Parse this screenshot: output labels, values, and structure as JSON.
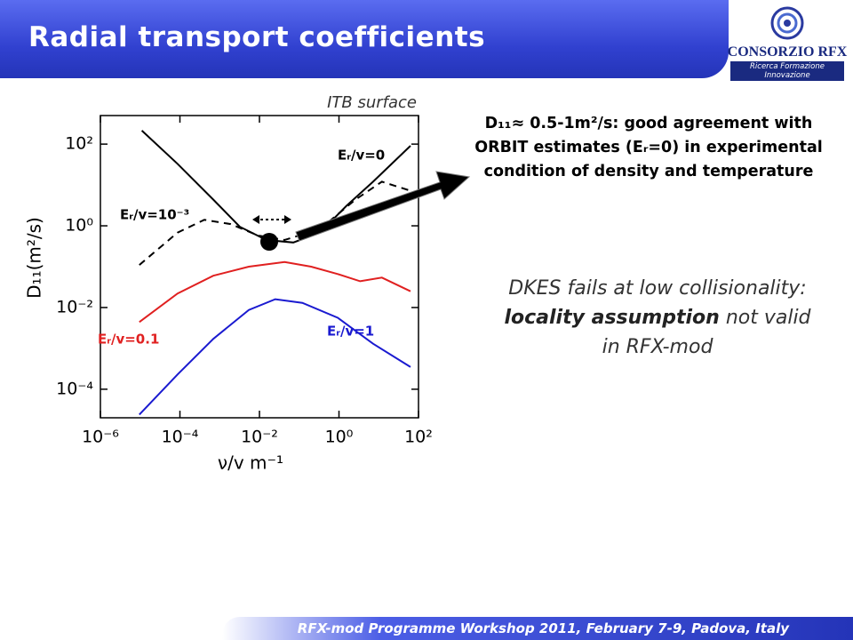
{
  "header": {
    "title": "Radial transport coefficients",
    "logo_name": "CONSORZIO RFX",
    "logo_tagline": "Ricerca Formazione Innovazione"
  },
  "callout": "D₁₁≈ 0.5-1m²/s: good agreement with ORBIT estimates (Eᵣ=0) in experimental condition of density and temperature",
  "note": {
    "parts": [
      "DKES fails at low collisionality:",
      "locality assumption",
      "not valid in RFX-mod"
    ]
  },
  "footer": "RFX-mod Programme Workshop 2011, February 7-9, Padova, Italy",
  "chart_data": {
    "type": "line",
    "annotation": "ITB surface",
    "x_label": "ν/v m⁻¹",
    "y_label": "D₁₁(m²/s)",
    "x_scale": "log",
    "y_scale": "log",
    "xlim": [
      1e-06,
      100
    ],
    "ylim": [
      2e-05,
      500
    ],
    "xticks": [
      {
        "value": 1e-06,
        "label": "10⁻⁶"
      },
      {
        "value": 0.0001,
        "label": "10⁻⁴"
      },
      {
        "value": 0.01,
        "label": "10⁻²"
      },
      {
        "value": 1,
        "label": "10⁰"
      },
      {
        "value": 100,
        "label": "10²"
      }
    ],
    "yticks": [
      {
        "value": 0.0001,
        "label": "10⁻⁴"
      },
      {
        "value": 0.01,
        "label": "10⁻²"
      },
      {
        "value": 1,
        "label": "10⁰"
      },
      {
        "value": 100,
        "label": "10²"
      }
    ],
    "series": [
      {
        "name": "Eᵣ/v=0",
        "color": "#000000",
        "dash": false,
        "x": [
          1.1e-05,
          8.7e-05,
          0.00069,
          0.0032,
          0.015,
          0.071,
          0.33,
          1.55,
          7.2,
          63
        ],
        "values": [
          214,
          33,
          4.4,
          0.95,
          0.45,
          0.39,
          0.68,
          3.1,
          12,
          91
        ]
      },
      {
        "name": "Eᵣ/v=10⁻³",
        "color": "#000000",
        "dash": true,
        "x": [
          9.5e-06,
          8.7e-05,
          0.00041,
          0.0019,
          0.0091,
          0.043,
          0.33,
          2.6,
          12,
          63
        ],
        "values": [
          0.11,
          0.68,
          1.4,
          1.1,
          0.58,
          0.45,
          0.83,
          4.4,
          12,
          7.2
        ]
      },
      {
        "name": "Eᵣ/v=0.1",
        "color": "#e02020",
        "dash": false,
        "x": [
          9.5e-06,
          8.7e-05,
          0.00069,
          0.0054,
          0.043,
          0.2,
          0.93,
          3.4,
          12,
          63
        ],
        "values": [
          0.0044,
          0.022,
          0.06,
          0.1,
          0.13,
          0.1,
          0.066,
          0.044,
          0.054,
          0.025
        ]
      },
      {
        "name": "Eᵣ/v=1",
        "color": "#1a1ad0",
        "dash": false,
        "x": [
          9.5e-06,
          8.7e-05,
          0.00069,
          0.0054,
          0.025,
          0.12,
          0.93,
          7.2,
          63
        ],
        "values": [
          2.4e-05,
          0.00023,
          0.0017,
          0.0087,
          0.016,
          0.013,
          0.0056,
          0.0013,
          0.00035
        ]
      }
    ]
  }
}
